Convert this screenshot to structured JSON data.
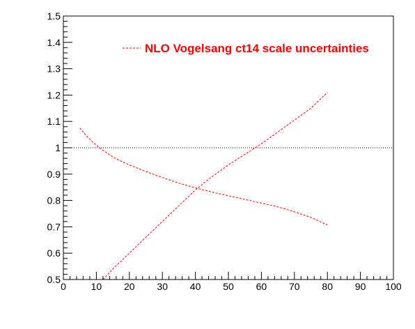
{
  "chart_data": {
    "type": "line",
    "xlim": [
      0,
      100
    ],
    "ylim": [
      0.5,
      1.5
    ],
    "x_ticks": [
      0,
      10,
      20,
      30,
      40,
      50,
      60,
      70,
      80,
      90,
      100
    ],
    "y_ticks": [
      0.5,
      0.6,
      0.7,
      0.8,
      0.9,
      1,
      1.1,
      1.2,
      1.3,
      1.4,
      1.5
    ],
    "x_tick_labels": [
      "0",
      "10",
      "20",
      "30",
      "40",
      "50",
      "60",
      "70",
      "80",
      "90",
      "100"
    ],
    "y_tick_labels": [
      "0.5",
      "0.6",
      "0.7",
      "0.8",
      "0.9",
      "1",
      "1.1",
      "1.2",
      "1.3",
      "1.4",
      "1.5"
    ],
    "grid": false,
    "legend": {
      "position": "top-right",
      "label": "NLO Vogelsang ct14 scale uncertainties",
      "color": "#ff0000"
    },
    "reference_line": {
      "y": 1,
      "style": "dotted",
      "color": "#000000"
    },
    "series": [
      {
        "color": "#ff0000",
        "style": "dashed",
        "x": [
          5,
          7,
          9,
          11,
          13,
          15,
          17,
          20,
          25,
          30,
          35,
          40,
          45,
          50,
          55,
          60,
          65,
          70,
          75,
          80
        ],
        "y": [
          1.075,
          1.045,
          1.02,
          1.0,
          0.982,
          0.965,
          0.952,
          0.935,
          0.91,
          0.887,
          0.866,
          0.848,
          0.832,
          0.818,
          0.804,
          0.79,
          0.776,
          0.757,
          0.736,
          0.707
        ]
      },
      {
        "color": "#ff0000",
        "style": "dashed",
        "x": [
          12,
          15,
          20,
          25,
          30,
          35,
          40,
          45,
          50,
          55,
          60,
          65,
          70,
          75,
          80
        ],
        "y": [
          0.5,
          0.54,
          0.6,
          0.66,
          0.72,
          0.78,
          0.84,
          0.89,
          0.935,
          0.975,
          1.015,
          1.06,
          1.105,
          1.15,
          1.21
        ]
      }
    ]
  }
}
